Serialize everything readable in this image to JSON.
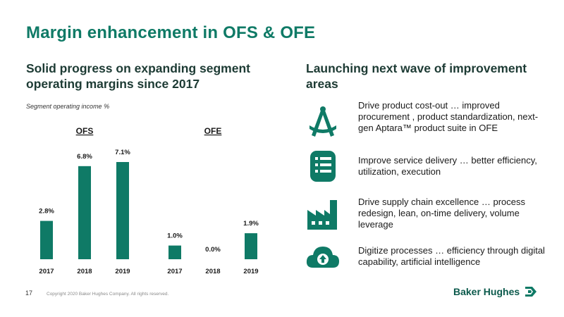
{
  "slide": {
    "title": "Margin enhancement in OFS & OFE",
    "left_heading": "Solid progress on expanding segment operating margins since 2017",
    "right_heading": "Launching next wave of improvement areas",
    "subtitle": "Segment operating income %",
    "page_number": "17",
    "copyright": "Copyright 2020 Baker Hughes Company. All rights reserved.",
    "logo_text": "Baker Hughes"
  },
  "colors": {
    "accent": "#0f7a66",
    "bar": "#0f7a66",
    "heading": "#1d3b34"
  },
  "chart_data": [
    {
      "type": "bar",
      "title": "OFS",
      "categories": [
        "2017",
        "2018",
        "2019"
      ],
      "values": [
        2.8,
        6.8,
        7.1
      ],
      "labels": [
        "2.8%",
        "6.8%",
        "7.1%"
      ],
      "unit": "%",
      "ylim": [
        0,
        7.1
      ],
      "grid": false
    },
    {
      "type": "bar",
      "title": "OFE",
      "categories": [
        "2017",
        "2018",
        "2019"
      ],
      "values": [
        1.0,
        0.0,
        1.9
      ],
      "labels": [
        "1.0%",
        "0.0%",
        "1.9%"
      ],
      "unit": "%",
      "ylim": [
        0,
        7.1
      ],
      "grid": false
    }
  ],
  "improvements": [
    {
      "icon": "drafting-compass-icon",
      "text": "Drive product cost-out … improved procurement , product standardization, next-gen Aptara™ product suite in OFE"
    },
    {
      "icon": "service-list-icon",
      "text": "Improve service delivery … better efficiency, utilization, execution"
    },
    {
      "icon": "factory-icon",
      "text": "Drive supply chain excellence … process redesign, lean, on-time delivery, volume leverage"
    },
    {
      "icon": "cloud-upload-icon",
      "text": "Digitize processes … efficiency through digital capability, artificial intelligence"
    }
  ]
}
